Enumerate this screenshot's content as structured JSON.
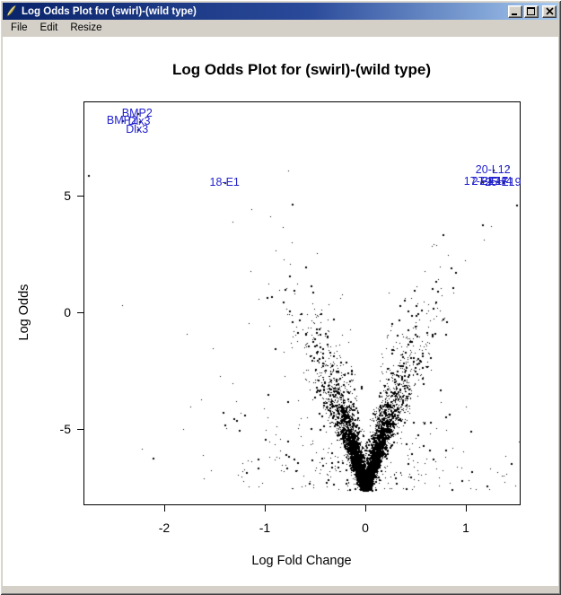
{
  "window": {
    "title": "Log Odds Plot for (swirl)-(wild type)"
  },
  "menu": {
    "items": [
      "File",
      "Edit",
      "Resize"
    ]
  },
  "colors": {
    "titlebar_left": "#0A246A",
    "titlebar_right": "#A6CAF0",
    "window_face": "#D4D0C8",
    "plot_background": "#FFFFFF",
    "point_color": "#000000",
    "gene_label_color": "#2121CE"
  },
  "chart_data": {
    "type": "scatter",
    "title": "Log Odds Plot for (swirl)-(wild type)",
    "xlabel": "Log Fold Change",
    "ylabel": "Log Odds",
    "xlim": [
      -2.78,
      1.53
    ],
    "ylim": [
      -8.3,
      9.0
    ],
    "x_ticks": [
      -2,
      -1,
      0,
      1
    ],
    "y_ticks": [
      5,
      0,
      -5
    ],
    "grid": false,
    "legend": false,
    "n_points_approx": 7600,
    "description": "Volcano-shaped cloud of ~7600 tiny black points: very dense V with vertex at (0,-7.6), dense arms rising to about (±0.6,0) and thinning toward (±1.3,6), sparse scatter flanking the arms; outlier genes labeled in blue.",
    "labeled_points": [
      {
        "label": "BMP2",
        "x": -2.27,
        "y": 8.55
      },
      {
        "label": "BMP2",
        "x": -2.42,
        "y": 8.22
      },
      {
        "label": "Dlx3",
        "x": -2.25,
        "y": 8.18
      },
      {
        "label": "Dlx3",
        "x": -2.27,
        "y": 7.83
      },
      {
        "label": "18-E1",
        "x": -1.4,
        "y": 5.58
      },
      {
        "label": "20-L12",
        "x": 1.27,
        "y": 6.1
      },
      {
        "label": "17-E17",
        "x": 1.16,
        "y": 5.6
      },
      {
        "label": "27-E17",
        "x": 1.24,
        "y": 5.62
      },
      {
        "label": "24-H4",
        "x": 1.31,
        "y": 5.6
      },
      {
        "label": "25-E19",
        "x": 1.37,
        "y": 5.58
      }
    ],
    "unlabeled_outliers": [
      {
        "x": -2.8,
        "y": 5.5
      },
      {
        "x": -2.76,
        "y": 5.9
      },
      {
        "x": 1.5,
        "y": 4.6
      }
    ],
    "generator": {
      "seed": 20040615,
      "n": 7600,
      "b_floor": -7.6,
      "b_exp_mean": 1.7,
      "b_soft_jitter": 0.18,
      "arm_linear": 14.8,
      "arm_quad": 3.0,
      "m_rel_jitter": 0.3,
      "m_abs_jitter": 0.022,
      "outward_prob": 0.045,
      "outward_mean": 0.55,
      "neg_prob": 0.52
    }
  }
}
